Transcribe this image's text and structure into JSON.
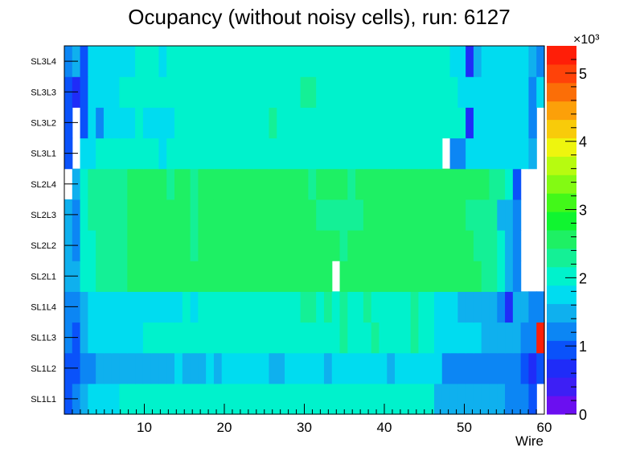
{
  "chart_data": {
    "type": "heatmap",
    "title": "Ocupancy (without noisy cells), run: 6127",
    "xlabel": "Wire",
    "ylabel": "",
    "x_range": [
      0,
      60
    ],
    "x_ticks": [
      10,
      20,
      30,
      40,
      50,
      60
    ],
    "y_categories": [
      "SL1L1",
      "SL1L2",
      "SL1L3",
      "SL1L4",
      "SL2L1",
      "SL2L2",
      "SL2L3",
      "SL2L4",
      "SL3L1",
      "SL3L2",
      "SL3L3",
      "SL3L4"
    ],
    "z_range": [
      0,
      5.4
    ],
    "z_multiplier": "×10³",
    "z_ticks": [
      0,
      1,
      2,
      3,
      4,
      5
    ],
    "palette": [
      "#6b0ff0",
      "#3d1ff5",
      "#1f2cf8",
      "#0a52fa",
      "#0c86f4",
      "#0fb0ee",
      "#00dcf0",
      "#00f2cc",
      "#14f096",
      "#1ef064",
      "#10f530",
      "#42f819",
      "#83fa13",
      "#b7fb10",
      "#eef50e",
      "#f8cb0a",
      "#fca009",
      "#fb6e07",
      "#ff4209",
      "#ff1e08"
    ],
    "rows": [
      [
        1.0,
        1.2,
        1.5,
        1.8,
        1.8,
        1.8,
        1.8,
        1.9,
        1.9,
        2.0,
        2.0,
        2.0,
        2.0,
        1.9,
        1.9,
        2.0,
        2.0,
        2.0,
        2.0,
        2.1,
        2.1,
        2.1,
        2.1,
        2.0,
        2.0,
        2.1,
        2.1,
        2.1,
        2.1,
        2.1,
        2.1,
        2.1,
        2.1,
        2.1,
        2.1,
        2.1,
        2.1,
        2.1,
        2.1,
        2.1,
        2.1,
        2.1,
        2.1,
        2.1,
        2.1,
        2.1,
        2.1,
        1.4,
        1.6,
        1.5,
        1.5,
        1.5,
        1.5,
        1.5,
        1.5,
        1.5,
        1.3,
        1.3,
        1.3,
        0.9,
        null
      ],
      [
        1.0,
        0.9,
        1.3,
        1.3,
        1.5,
        1.5,
        1.5,
        1.5,
        1.5,
        1.5,
        1.5,
        1.5,
        1.5,
        1.5,
        1.7,
        1.5,
        1.5,
        1.5,
        1.7,
        1.5,
        1.7,
        1.7,
        1.8,
        1.7,
        1.7,
        1.7,
        1.6,
        1.6,
        1.7,
        1.7,
        1.8,
        1.8,
        1.8,
        1.6,
        1.8,
        1.8,
        1.7,
        1.8,
        1.8,
        1.7,
        1.8,
        1.6,
        1.8,
        1.8,
        1.8,
        1.8,
        1.7,
        1.8,
        1.3,
        1.3,
        1.3,
        1.3,
        1.3,
        1.3,
        1.3,
        1.1,
        1.1,
        1.1,
        1.0,
        0.8,
        0.9
      ],
      [
        1.2,
        0.9,
        1.5,
        1.8,
        1.8,
        1.8,
        1.8,
        1.8,
        1.8,
        1.8,
        2.0,
        2.0,
        1.9,
        1.9,
        1.9,
        2.0,
        2.0,
        2.0,
        2.0,
        2.0,
        2.0,
        2.0,
        2.0,
        2.0,
        2.0,
        2.0,
        2.0,
        2.0,
        2.1,
        2.0,
        2.0,
        2.0,
        2.1,
        2.0,
        2.0,
        2.2,
        2.0,
        2.1,
        2.0,
        2.2,
        2.0,
        2.0,
        2.0,
        2.0,
        2.2,
        2.1,
        1.9,
        1.7,
        1.7,
        1.7,
        1.7,
        1.7,
        1.7,
        1.5,
        1.5,
        1.5,
        1.5,
        1.5,
        1.3,
        1.1,
        5.3
      ],
      [
        1.2,
        1.1,
        1.6,
        1.7,
        1.8,
        1.8,
        1.8,
        1.8,
        1.8,
        1.8,
        1.8,
        1.8,
        1.8,
        1.8,
        1.8,
        1.9,
        1.8,
        1.9,
        1.9,
        2.0,
        2.0,
        2.0,
        2.0,
        2.0,
        2.0,
        2.0,
        2.0,
        2.0,
        2.0,
        2.0,
        2.2,
        2.2,
        2.0,
        2.2,
        2.0,
        2.2,
        2.0,
        2.0,
        2.2,
        2.0,
        2.0,
        2.0,
        2.0,
        2.0,
        2.2,
        2.0,
        2.0,
        1.8,
        1.8,
        1.8,
        1.5,
        1.5,
        1.5,
        1.5,
        1.6,
        1.3,
        0.8,
        1.5,
        1.5,
        1.2,
        1.2
      ],
      [
        1.5,
        1.4,
        1.9,
        2.0,
        2.4,
        2.4,
        2.4,
        2.4,
        2.5,
        2.5,
        2.5,
        2.5,
        2.5,
        2.5,
        2.5,
        2.5,
        2.5,
        2.5,
        2.5,
        2.5,
        2.5,
        2.5,
        2.5,
        2.5,
        2.5,
        2.5,
        2.5,
        2.5,
        2.6,
        2.5,
        2.5,
        2.5,
        2.5,
        2.5,
        null,
        2.5,
        2.5,
        2.5,
        2.5,
        2.5,
        2.5,
        2.5,
        2.5,
        2.5,
        2.5,
        2.5,
        2.5,
        2.5,
        2.5,
        2.5,
        2.5,
        2.5,
        2.5,
        2.3,
        2.3,
        2.0,
        1.5,
        1.1,
        null,
        null,
        null
      ],
      [
        1.4,
        1.2,
        2.0,
        2.1,
        2.3,
        2.4,
        2.4,
        2.4,
        2.5,
        2.5,
        2.5,
        2.5,
        2.5,
        2.5,
        2.5,
        2.5,
        2.4,
        2.5,
        2.5,
        2.5,
        2.5,
        2.5,
        2.5,
        2.5,
        2.5,
        2.5,
        2.5,
        2.5,
        2.6,
        2.5,
        2.5,
        2.5,
        2.5,
        2.5,
        2.5,
        2.4,
        2.5,
        2.5,
        2.5,
        2.5,
        2.5,
        2.5,
        2.5,
        2.5,
        2.5,
        2.5,
        2.5,
        2.5,
        2.5,
        2.5,
        2.5,
        2.5,
        2.4,
        2.3,
        2.3,
        2.0,
        1.5,
        1.1,
        null,
        null,
        null
      ],
      [
        1.4,
        1.2,
        2.0,
        2.2,
        2.3,
        2.4,
        2.4,
        2.4,
        2.5,
        2.5,
        2.5,
        2.5,
        2.5,
        2.5,
        2.5,
        2.5,
        2.3,
        2.5,
        2.5,
        2.5,
        2.5,
        2.5,
        2.5,
        2.5,
        2.5,
        2.5,
        2.5,
        2.5,
        2.5,
        2.5,
        2.5,
        2.5,
        2.3,
        2.3,
        2.3,
        2.3,
        2.3,
        2.3,
        2.5,
        2.5,
        2.5,
        2.5,
        2.5,
        2.5,
        2.5,
        2.5,
        2.5,
        2.5,
        2.5,
        2.5,
        2.5,
        2.3,
        2.3,
        2.3,
        2.3,
        1.5,
        1.4,
        1.1,
        null,
        null,
        null
      ],
      [
        null,
        1.4,
        2.0,
        2.2,
        2.3,
        2.3,
        2.3,
        2.4,
        2.5,
        2.5,
        2.5,
        2.6,
        2.5,
        2.4,
        2.5,
        2.5,
        2.4,
        2.5,
        2.5,
        2.5,
        2.5,
        2.5,
        2.5,
        2.5,
        2.5,
        2.5,
        2.5,
        2.5,
        2.5,
        2.5,
        2.5,
        2.4,
        2.5,
        2.5,
        2.5,
        2.5,
        2.4,
        2.5,
        2.5,
        2.5,
        2.5,
        2.5,
        2.5,
        2.5,
        2.5,
        2.5,
        2.5,
        2.5,
        2.5,
        2.5,
        2.5,
        2.5,
        2.5,
        2.5,
        2.3,
        2.2,
        2.0,
        1.0,
        null,
        null,
        null
      ],
      [
        0.9,
        null,
        1.8,
        1.7,
        1.9,
        1.9,
        2.0,
        2.0,
        1.9,
        1.9,
        2.0,
        2.0,
        1.8,
        1.9,
        1.9,
        2.0,
        2.0,
        2.0,
        2.0,
        2.0,
        2.0,
        2.0,
        2.0,
        2.0,
        2.1,
        2.1,
        2.0,
        2.1,
        2.1,
        2.1,
        2.0,
        2.1,
        2.1,
        2.1,
        2.1,
        2.1,
        2.1,
        2.1,
        2.1,
        2.1,
        2.1,
        2.0,
        2.1,
        2.0,
        2.1,
        2.1,
        2.0,
        2.1,
        null,
        1.3,
        1.1,
        1.8,
        1.8,
        1.8,
        1.8,
        1.8,
        1.8,
        1.8,
        1.8,
        1.5,
        null
      ],
      [
        1.0,
        null,
        0.9,
        1.8,
        1.3,
        1.8,
        1.8,
        1.8,
        1.8,
        2.0,
        1.8,
        1.8,
        1.8,
        1.8,
        2.0,
        2.0,
        2.0,
        2.0,
        2.0,
        2.0,
        2.0,
        2.0,
        2.0,
        2.0,
        2.0,
        2.0,
        2.2,
        2.0,
        2.0,
        2.0,
        2.1,
        2.1,
        2.1,
        2.1,
        2.1,
        2.1,
        2.1,
        2.1,
        2.1,
        2.1,
        2.1,
        2.1,
        2.1,
        2.1,
        2.1,
        2.1,
        2.1,
        2.1,
        1.9,
        1.9,
        1.9,
        0.8,
        1.8,
        1.8,
        1.8,
        1.8,
        1.8,
        1.8,
        1.8,
        1.2,
        null
      ],
      [
        1.0,
        0.8,
        0.9,
        1.8,
        1.8,
        1.8,
        1.8,
        1.9,
        1.9,
        1.9,
        2.0,
        2.0,
        2.0,
        2.0,
        1.9,
        1.9,
        1.9,
        1.9,
        1.9,
        2.0,
        2.0,
        2.0,
        2.0,
        2.0,
        2.0,
        2.1,
        2.1,
        2.0,
        2.1,
        2.1,
        2.2,
        2.2,
        2.1,
        2.1,
        2.1,
        2.1,
        2.1,
        2.1,
        2.1,
        2.1,
        2.1,
        2.1,
        2.1,
        2.1,
        2.1,
        2.1,
        2.0,
        2.0,
        2.0,
        1.9,
        1.7,
        1.7,
        1.7,
        1.7,
        1.7,
        1.7,
        1.7,
        1.7,
        1.7,
        1.2,
        1.7
      ],
      [
        1.3,
        1.5,
        1.0,
        1.8,
        1.8,
        1.8,
        1.8,
        1.8,
        1.8,
        2.0,
        2.0,
        2.0,
        1.8,
        2.0,
        2.0,
        2.0,
        2.0,
        2.0,
        2.0,
        2.0,
        2.0,
        2.0,
        2.0,
        2.0,
        2.0,
        2.0,
        2.0,
        2.0,
        2.0,
        2.0,
        2.0,
        2.0,
        2.1,
        2.1,
        2.1,
        2.1,
        2.1,
        2.1,
        2.1,
        2.1,
        2.1,
        2.1,
        2.1,
        2.1,
        2.1,
        2.1,
        2.1,
        2.1,
        2.1,
        1.8,
        1.8,
        0.8,
        1.6,
        1.8,
        1.8,
        1.8,
        1.8,
        1.8,
        1.8,
        1.4,
        1.2
      ]
    ]
  }
}
